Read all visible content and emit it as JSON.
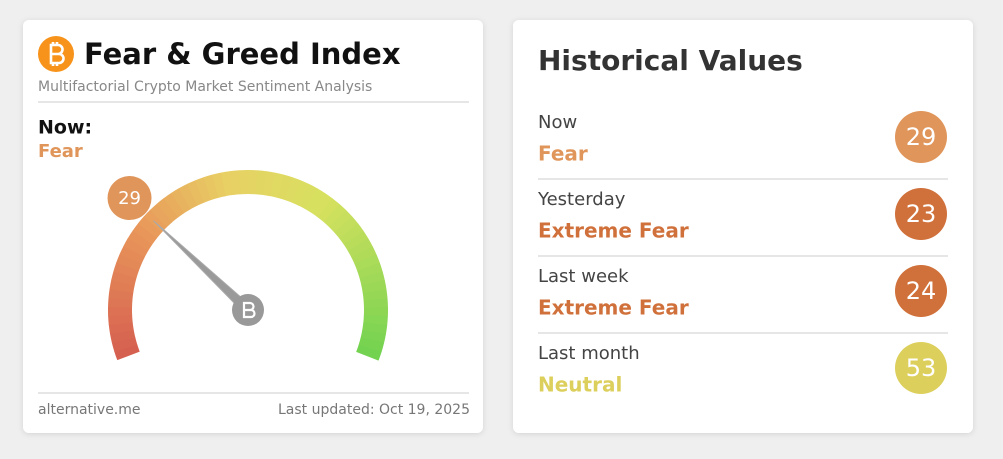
{
  "header": {
    "title": "Fear & Greed Index",
    "subtitle": "Multifactorial Crypto Market Sentiment Analysis"
  },
  "now": {
    "label": "Now:",
    "classification": "Fear",
    "color": "#e0955a"
  },
  "gauge": {
    "value": 29,
    "lim": [
      0,
      100
    ],
    "color": "#e0955a"
  },
  "footer": {
    "source": "alternative.me",
    "updated": "Last updated: Oct 19, 2025"
  },
  "historical": {
    "title": "Historical Values",
    "rows": [
      {
        "period": "Now",
        "classification": "Fear",
        "value": 29,
        "color": "#e0955a"
      },
      {
        "period": "Yesterday",
        "classification": "Extreme Fear",
        "value": 23,
        "color": "#d0703a"
      },
      {
        "period": "Last week",
        "classification": "Extreme Fear",
        "value": 24,
        "color": "#d0703a"
      },
      {
        "period": "Last month",
        "classification": "Neutral",
        "value": 53,
        "color": "#dccf5c"
      }
    ]
  }
}
